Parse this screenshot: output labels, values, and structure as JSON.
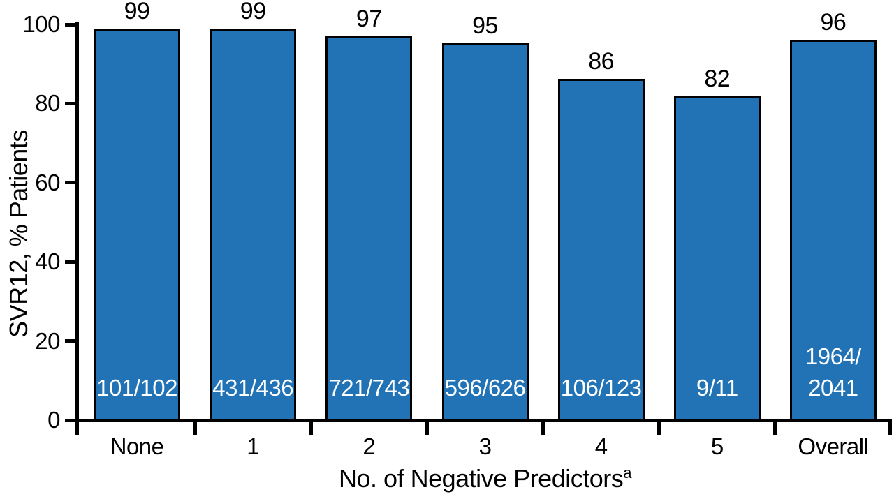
{
  "chart_data": {
    "type": "bar",
    "title": "",
    "categories": [
      "None",
      "1",
      "2",
      "3",
      "4",
      "5",
      "Overall"
    ],
    "values": [
      99.0,
      98.9,
      97.0,
      95.2,
      86.2,
      81.8,
      96.2
    ],
    "bar_value_labels": [
      "99",
      "99",
      "97",
      "95",
      "86",
      "82",
      "96"
    ],
    "bar_fraction_labels": [
      [
        "101/102"
      ],
      [
        "431/436"
      ],
      [
        "721/743"
      ],
      [
        "596/626"
      ],
      [
        "106/123"
      ],
      [
        "9/11"
      ],
      [
        "1964/",
        "2041"
      ]
    ],
    "xlabel": "No. of Negative Predictors",
    "xlabel_superscript": "a",
    "ylabel": "SVR12, % Patients",
    "ylim": [
      0,
      100
    ],
    "yticks": [
      0,
      20,
      40,
      60,
      80,
      100
    ],
    "grid": false,
    "legend_position": "none",
    "colors": {
      "bar_fill": "#2173B6",
      "bar_border": "#000000",
      "axis": "#000000",
      "bar_label_text": "#FFFFFF",
      "text": "#000000"
    }
  }
}
